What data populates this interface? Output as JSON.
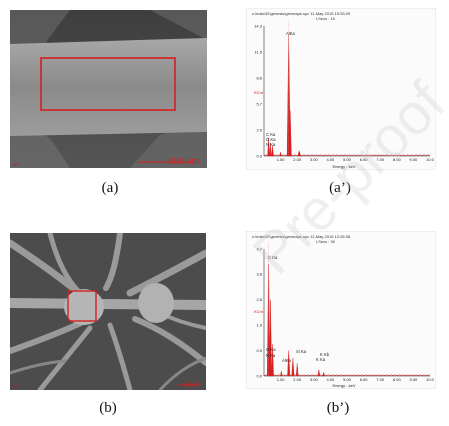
{
  "panels": {
    "a": {
      "caption": "(a)",
      "scale_bar": "200 nm",
      "corner_label": "SEI"
    },
    "a_prime": {
      "caption": "(a’)",
      "header_line1": "c:\\edax32\\genesis\\genmaps.spc  11-May-2015 15:53:29",
      "header_line2": "LSecs : 16",
      "y_ticks": [
        "14.3",
        "11.5",
        "8.6",
        "5.7",
        "2.9",
        "0.0"
      ],
      "x_ticks": [
        "1.00",
        "2.00",
        "3.00",
        "4.00",
        "5.00",
        "6.00",
        "7.00",
        "8.00",
        "9.00",
        "10.0"
      ],
      "x_label": "Energy - keV",
      "y_unit": "KCnt",
      "peak_labels": [
        "AlKa",
        "C Ka",
        "O Ka",
        "N Ka"
      ]
    },
    "b": {
      "caption": "(b)",
      "scale_bar": "1 μm",
      "corner_label": "SEI"
    },
    "b_prime": {
      "caption": "(b’)",
      "header_line1": "c:\\edax32\\genesis\\genmaps.spc  11-May-2015 12:05:38",
      "header_line2": "LSecs : 39",
      "y_ticks": [
        "4.7",
        "3.8",
        "2.8",
        "1.9",
        "0.9",
        "0.0"
      ],
      "x_ticks": [
        "1.00",
        "2.00",
        "3.00",
        "4.00",
        "5.00",
        "6.00",
        "7.00",
        "8.00",
        "9.00",
        "10.0"
      ],
      "x_label": "Energy - keV",
      "y_unit": "KCnt",
      "peak_labels": [
        "C Ka",
        "O Ka",
        "N Ka",
        "Si Ka",
        "AlKa",
        "K Kb",
        "K Ka"
      ]
    }
  },
  "watermark": "Pre-proof",
  "colors": {
    "accent": "#d42020",
    "sem_bg": "#5a5a5a"
  }
}
